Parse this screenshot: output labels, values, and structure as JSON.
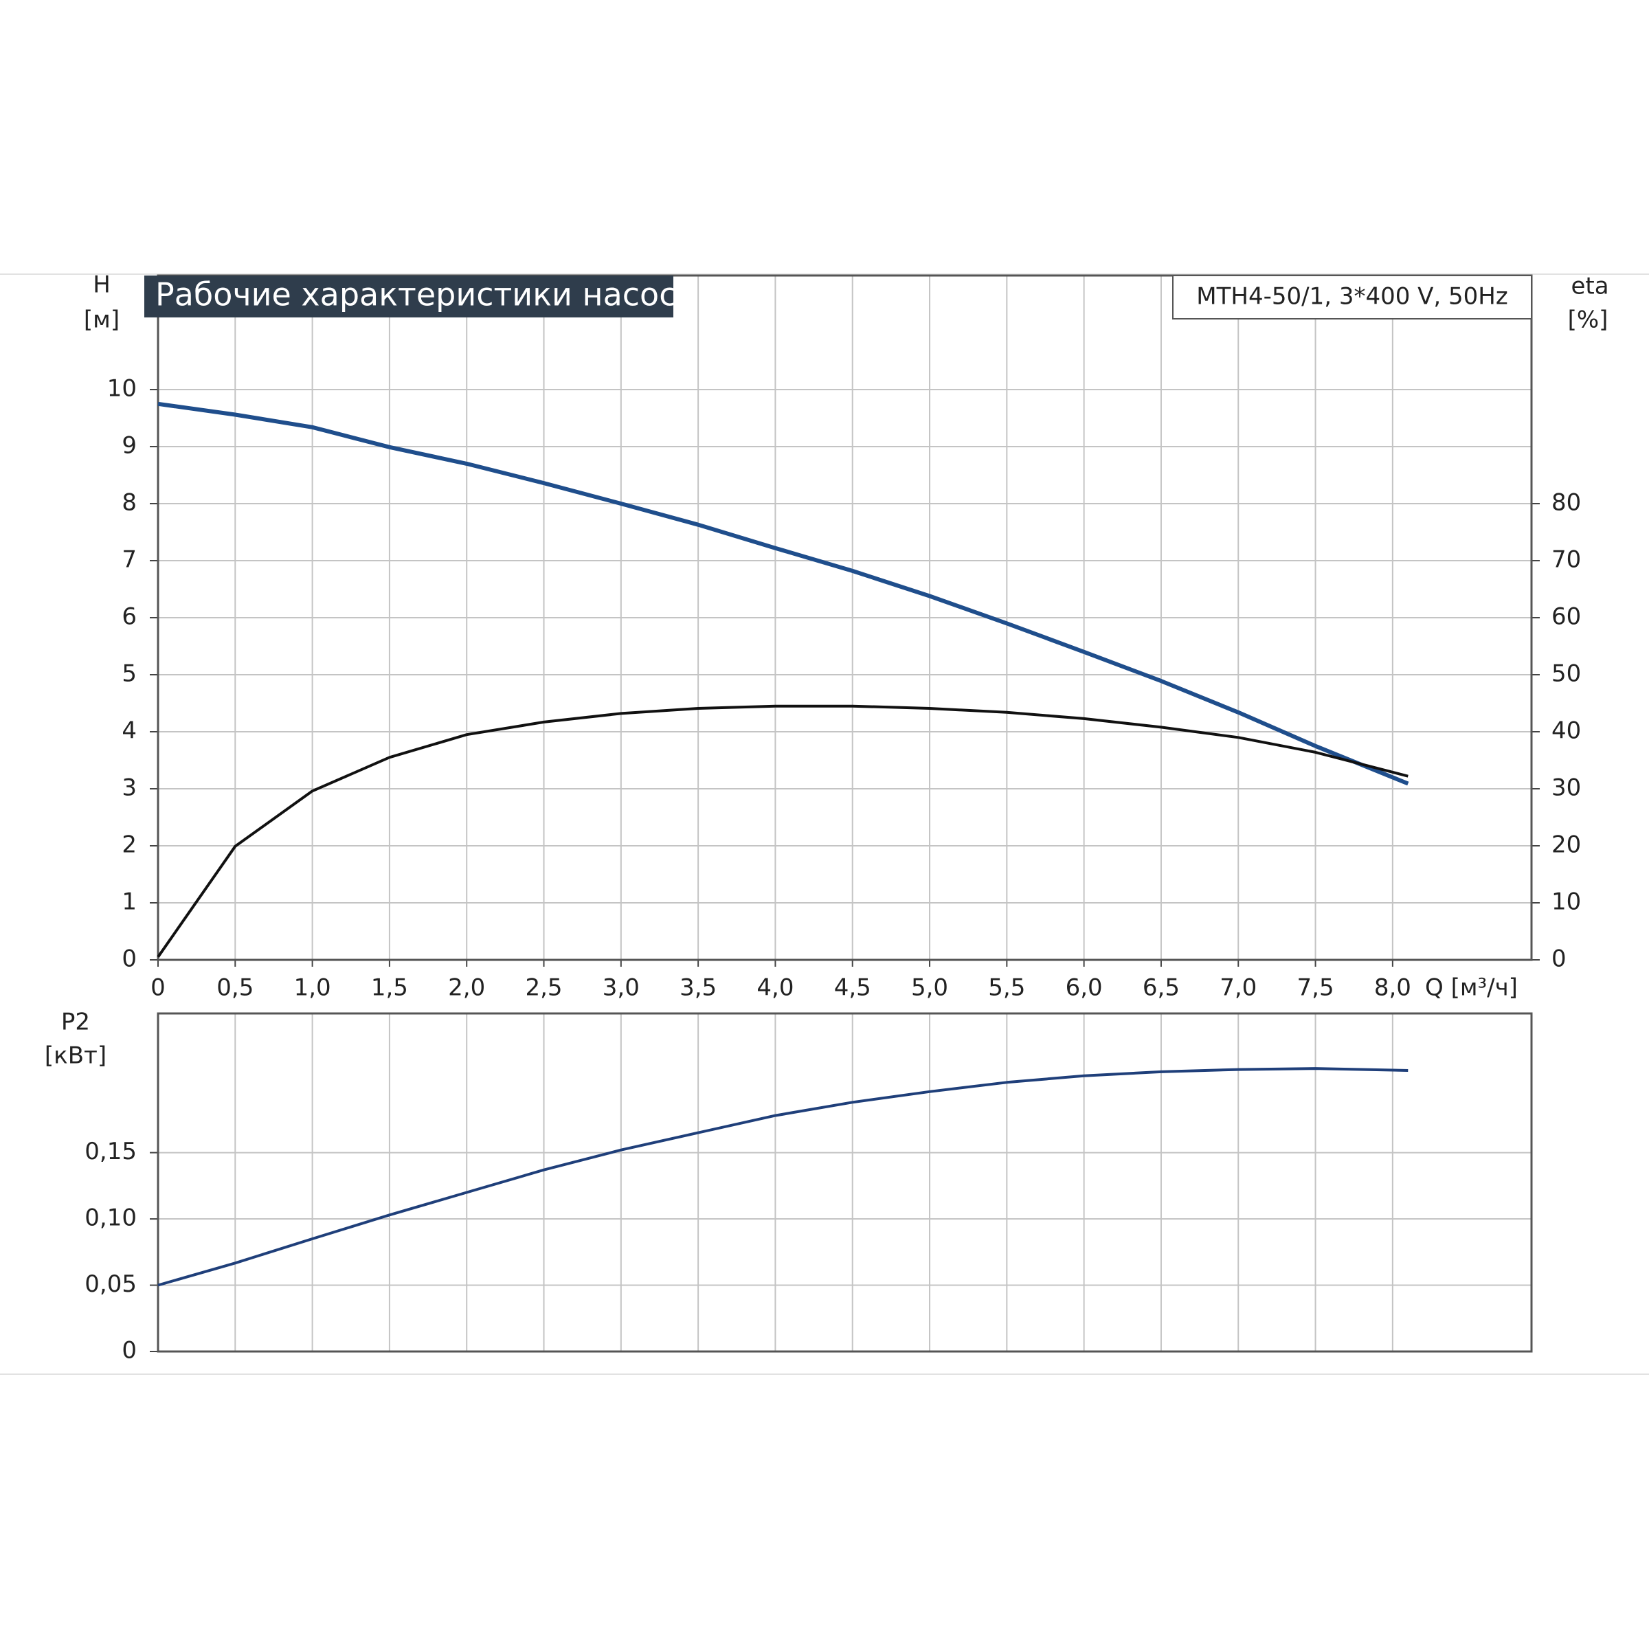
{
  "chart_data": [
    {
      "type": "line",
      "title": "Рабочие характеристики насоса",
      "annotation": "MTH4-50/1, 3*400 V, 50Hz",
      "ylabel": "H",
      "yunit": "[м]",
      "y2label": "eta",
      "y2unit": "[%]",
      "xlabel": "Q [м³/ч]",
      "x": [
        0,
        0.5,
        1.0,
        1.5,
        2.0,
        2.5,
        3.0,
        3.5,
        4.0,
        4.5,
        5.0,
        5.5,
        6.0,
        6.5,
        7.0,
        7.5,
        8.1
      ],
      "series": [
        {
          "color": "#1f4e8c",
          "values": [
            9.75,
            9.56,
            9.34,
            8.99,
            8.7,
            8.36,
            8.0,
            7.63,
            7.22,
            6.82,
            6.38,
            5.9,
            5.4,
            4.89,
            4.34,
            3.75,
            3.09
          ]
        },
        {
          "color": "#111111",
          "axis": "y2",
          "values": [
            0.5,
            19.9,
            29.6,
            35.5,
            39.5,
            41.7,
            43.2,
            44.1,
            44.5,
            44.5,
            44.1,
            43.4,
            42.3,
            40.8,
            39,
            36.4,
            32.2
          ]
        }
      ],
      "xlim": [
        0,
        8.9
      ],
      "xticks": [
        0,
        {
          "value": 0.5,
          "label": "0,5"
        },
        {
          "value": 1.0,
          "label": "1,0"
        },
        {
          "value": 1.5,
          "label": "1,5"
        },
        {
          "value": 2.0,
          "label": "2,0"
        },
        {
          "value": 2.5,
          "label": "2,5"
        },
        {
          "value": 3.0,
          "label": "3,0"
        },
        {
          "value": 3.5,
          "label": "3,5"
        },
        {
          "value": 4.0,
          "label": "4,0"
        },
        {
          "value": 4.5,
          "label": "4,5"
        },
        {
          "value": 5.0,
          "label": "5,0"
        },
        {
          "value": 5.5,
          "label": "5,5"
        },
        {
          "value": 6.0,
          "label": "6,0"
        },
        {
          "value": 6.5,
          "label": "6,5"
        },
        {
          "value": 7.0,
          "label": "7,0"
        },
        {
          "value": 7.5,
          "label": "7,5"
        },
        {
          "value": 8.0,
          "label": "8,0"
        }
      ],
      "ylim": [
        0,
        12
      ],
      "yticks": [
        0,
        1,
        2,
        3,
        4,
        5,
        6,
        7,
        8,
        9,
        10
      ],
      "y2lim": [
        0,
        120
      ],
      "y2ticks": [
        0,
        10,
        20,
        30,
        40,
        50,
        60,
        70,
        80
      ],
      "grid": true
    },
    {
      "type": "line",
      "ylabel": "P2",
      "yunit": "[кВт]",
      "x": [
        0,
        0.5,
        1.0,
        1.5,
        2.0,
        2.5,
        3.0,
        3.5,
        4.0,
        4.5,
        5.0,
        5.5,
        6.0,
        6.5,
        7.0,
        7.5,
        8.1
      ],
      "series": [
        {
          "color": "#1f3f7a",
          "values": [
            0.05,
            0.0667,
            0.085,
            0.103,
            0.12,
            0.137,
            0.152,
            0.165,
            0.178,
            0.188,
            0.196,
            0.203,
            0.208,
            0.211,
            0.2127,
            0.2135,
            0.212
          ]
        }
      ],
      "xlim": [
        0,
        8.9
      ],
      "ylim": [
        0,
        0.255
      ],
      "yticks": [
        0,
        {
          "value": 0.05,
          "label": "0,05"
        },
        {
          "value": 0.1,
          "label": "0,10"
        },
        {
          "value": 0.15,
          "label": "0,15"
        }
      ],
      "grid": true
    }
  ]
}
